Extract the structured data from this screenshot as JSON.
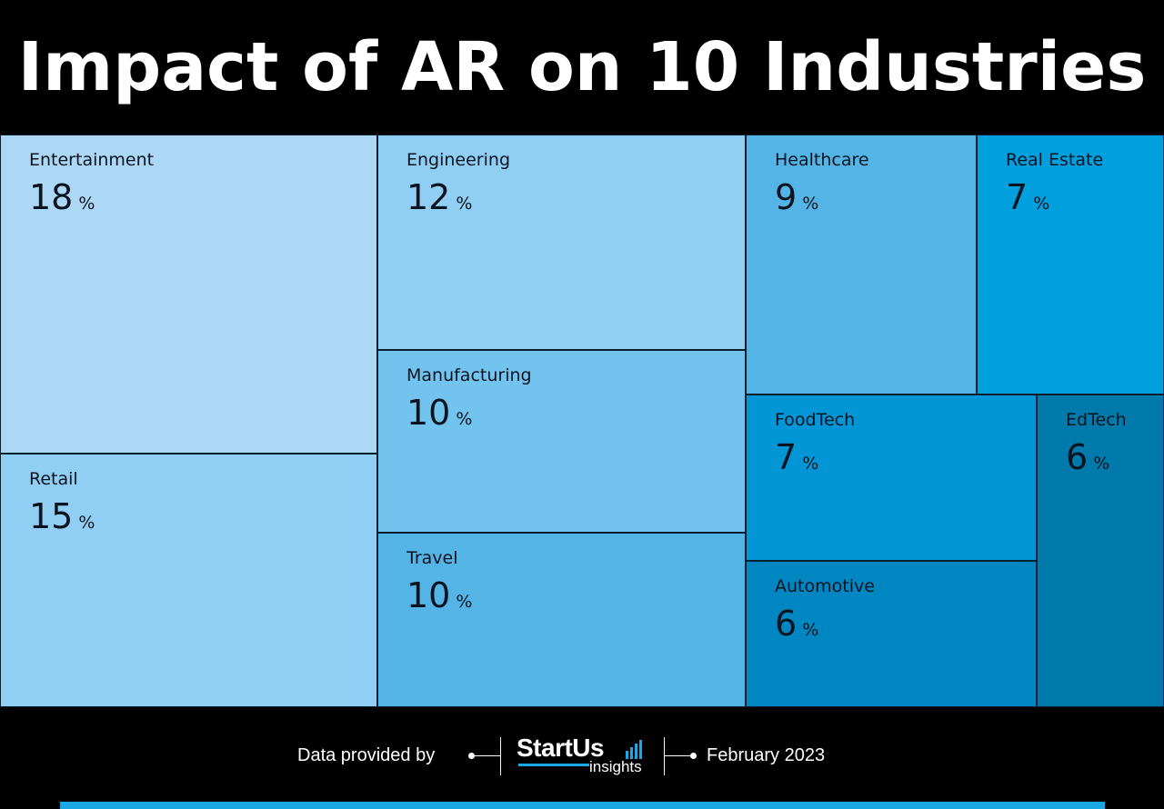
{
  "title": "Impact of AR on 10 Industries",
  "chart_data": {
    "type": "treemap",
    "unit": "%",
    "items": [
      {
        "label": "Entertainment",
        "value": 18,
        "color": "#acd8f5"
      },
      {
        "label": "Retail",
        "value": 15,
        "color": "#90cff3"
      },
      {
        "label": "Engineering",
        "value": 12,
        "color": "#90cff3"
      },
      {
        "label": "Manufacturing",
        "value": 10,
        "color": "#72c3ee"
      },
      {
        "label": "Travel",
        "value": 10,
        "color": "#55b4e6"
      },
      {
        "label": "Healthcare",
        "value": 9,
        "color": "#55b4e6"
      },
      {
        "label": "Real Estate",
        "value": 7,
        "color": "#00a0de"
      },
      {
        "label": "FoodTech",
        "value": 7,
        "color": "#0396d6"
      },
      {
        "label": "Automotive",
        "value": 6,
        "color": "#0086c1"
      },
      {
        "label": "EdTech",
        "value": 6,
        "color": "#0079ab"
      }
    ]
  },
  "footer": {
    "provided_by": "Data provided by",
    "brand_name": "StartUs",
    "brand_sub": "insights",
    "date": "February 2023",
    "accent_color": "#1aa7e6"
  }
}
